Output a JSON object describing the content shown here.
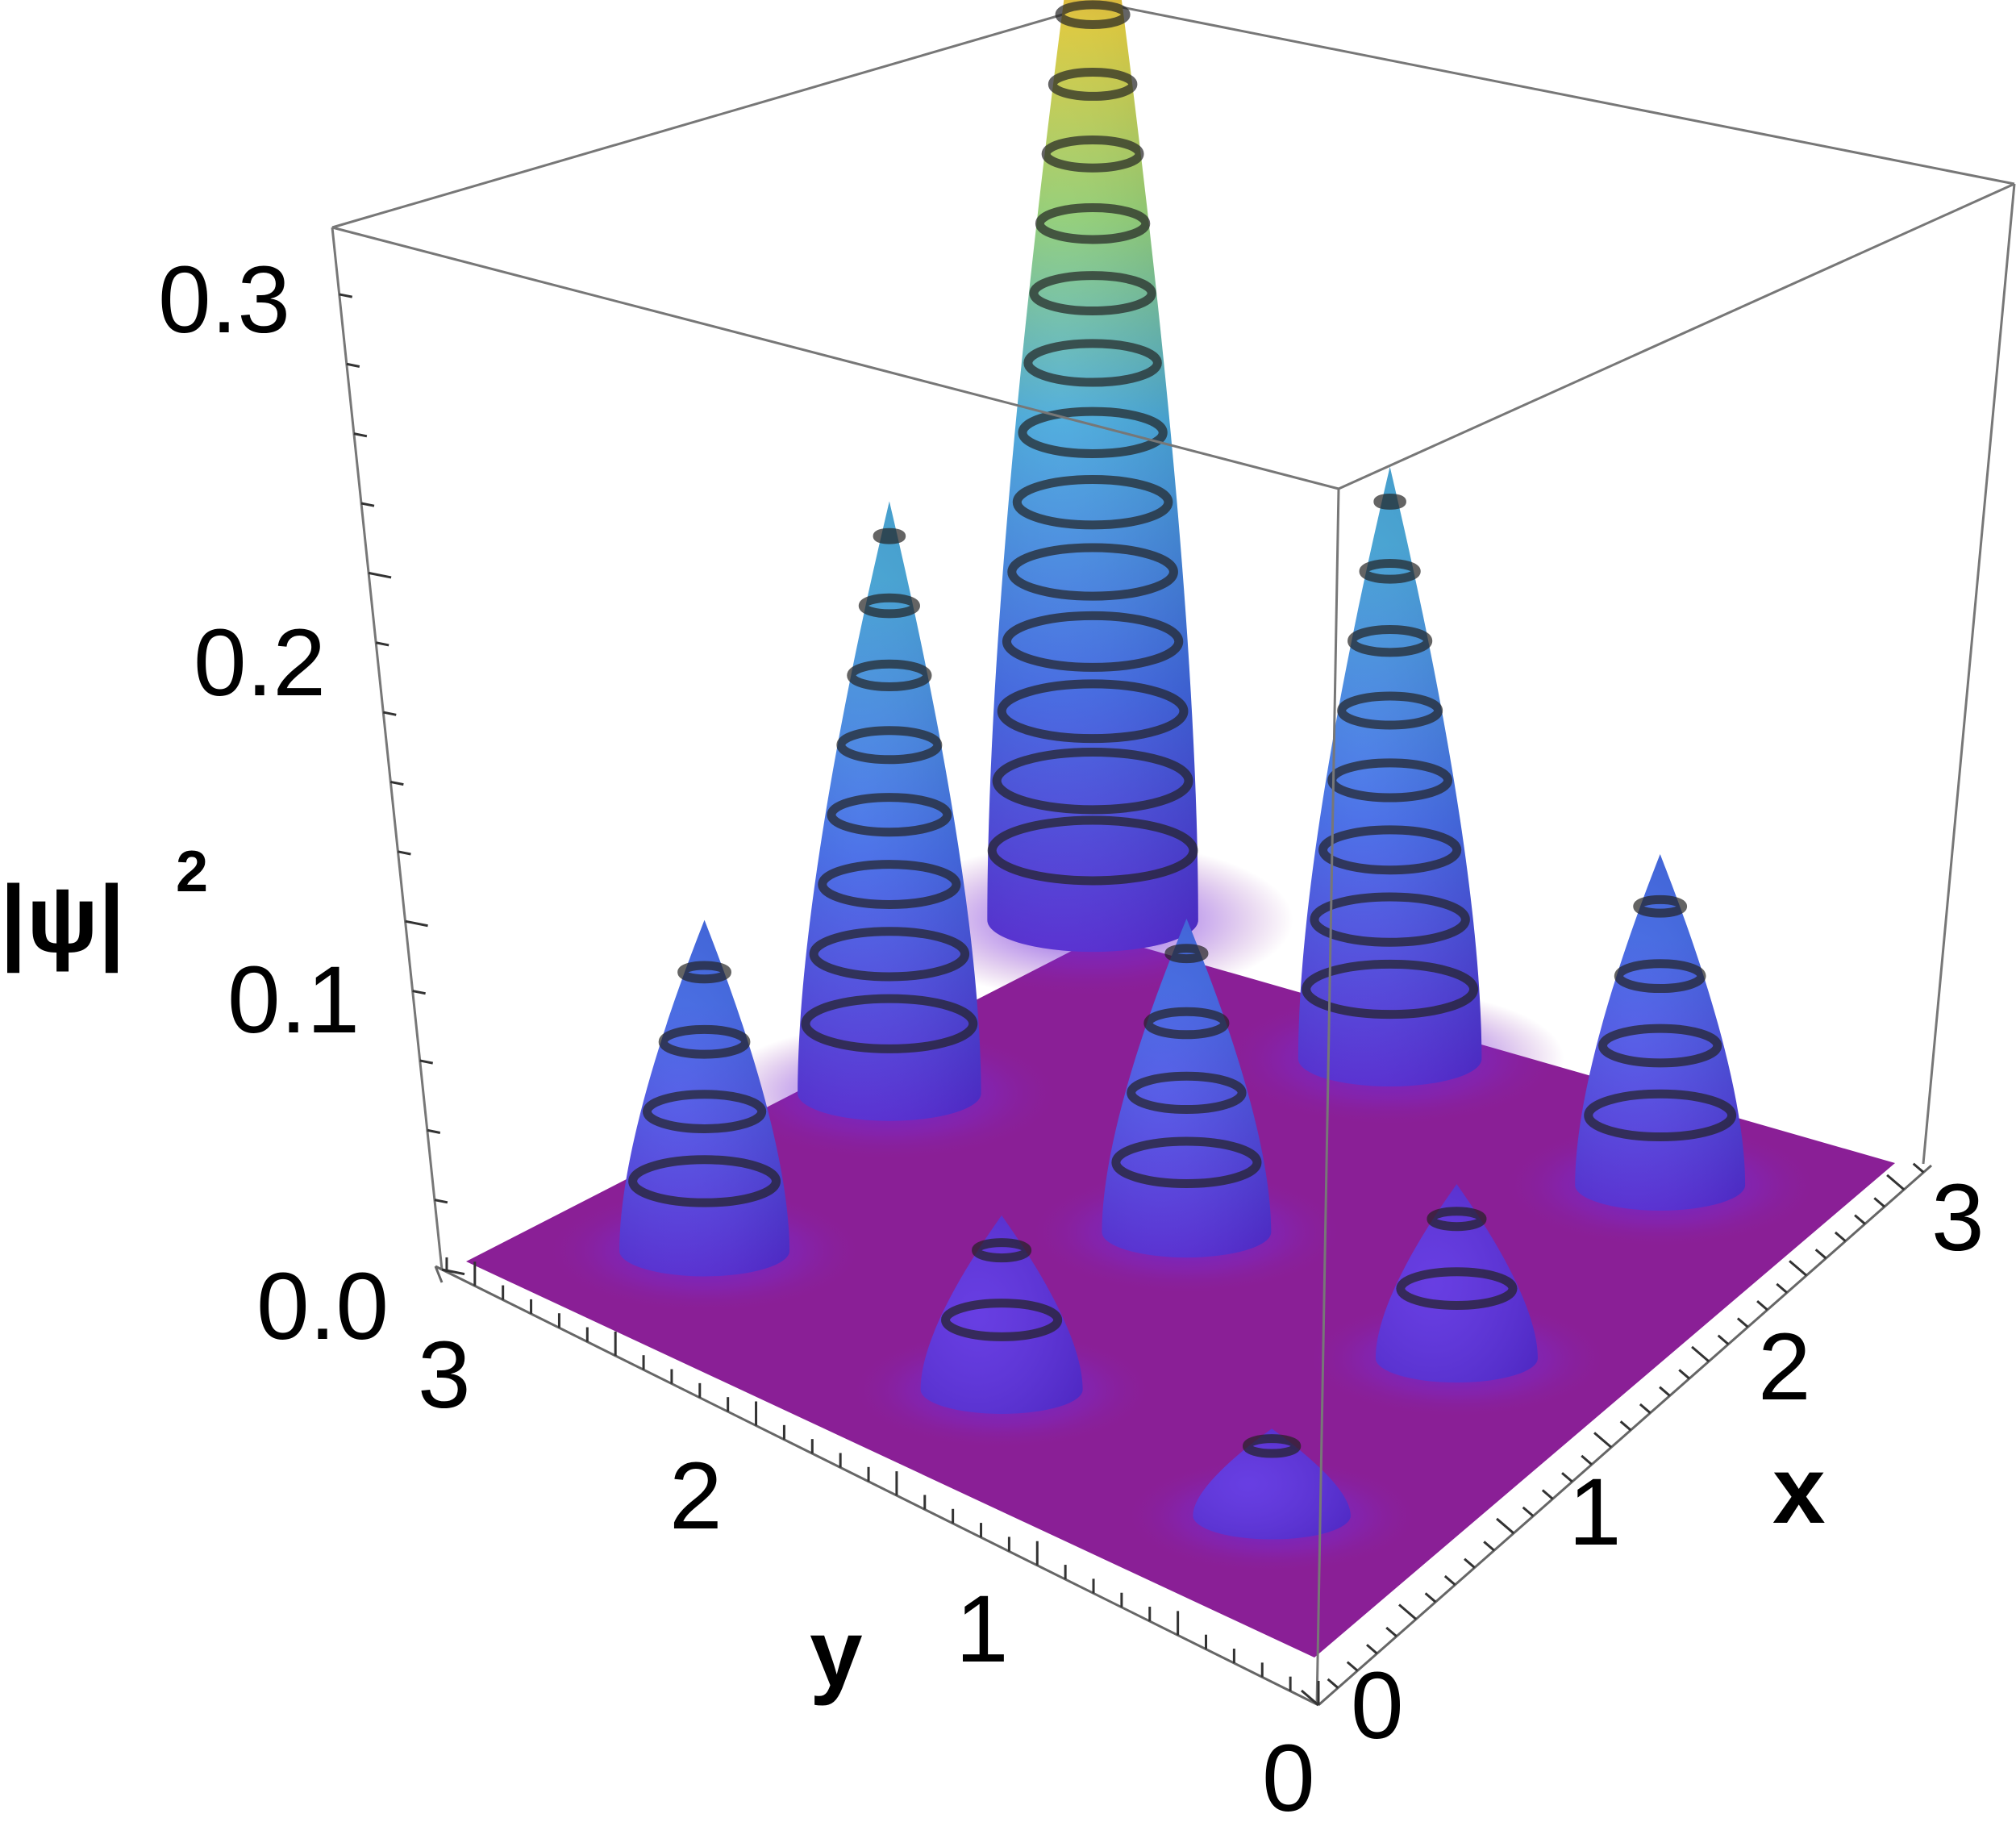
{
  "chart_data": {
    "type": "surface3d",
    "zlabel": "|ψ|",
    "zlabel_power": "2",
    "xlabel": "x",
    "ylabel": "y",
    "x_ticks": [
      "0",
      "1",
      "2",
      "3"
    ],
    "y_ticks": [
      "0",
      "1",
      "2",
      "3"
    ],
    "z_ticks": [
      "0.0",
      "0.1",
      "0.2",
      "0.3"
    ],
    "xlim": [
      0,
      3.14
    ],
    "ylim": [
      0,
      3.14
    ],
    "zlim": [
      0,
      0.33
    ],
    "grid": false,
    "box": true,
    "peaks": [
      {
        "x": 2.6,
        "y": 2.6,
        "z": 0.325
      },
      {
        "x": 2.6,
        "y": 1.5,
        "z": 0.17
      },
      {
        "x": 1.5,
        "y": 2.6,
        "z": 0.17
      },
      {
        "x": 2.6,
        "y": 0.5,
        "z": 0.095
      },
      {
        "x": 0.5,
        "y": 2.6,
        "z": 0.095
      },
      {
        "x": 1.5,
        "y": 1.5,
        "z": 0.09
      },
      {
        "x": 1.5,
        "y": 0.5,
        "z": 0.05
      },
      {
        "x": 0.5,
        "y": 1.5,
        "z": 0.05
      },
      {
        "x": 0.5,
        "y": 0.5,
        "z": 0.025
      }
    ],
    "colors": {
      "floor": "#8a1f96",
      "low": "#4a3fe0",
      "mid": "#48aee0",
      "high": "#e0d03a",
      "top": "#e8351e"
    }
  }
}
